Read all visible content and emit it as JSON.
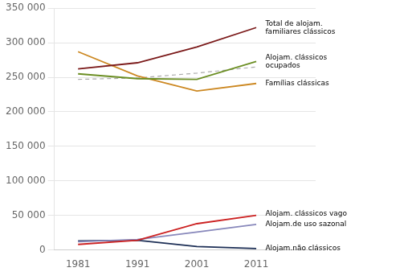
{
  "chart_data": {
    "type": "line",
    "x": [
      1981,
      1991,
      2001,
      2011
    ],
    "series": [
      {
        "color": "#7B1A1A",
        "values": [
          262000,
          271000,
          294000,
          322000
        ],
        "line_style": "solid"
      },
      {
        "color": "#6B8E23",
        "values": [
          255000,
          248000,
          247000,
          273000
        ],
        "line_style": "solid"
      },
      {
        "color": "#CC8822",
        "values": [
          287000,
          252000,
          230000,
          241000
        ],
        "line_style": "solid"
      },
      {
        "color": "#AAAAAA",
        "values": [
          247000,
          249000,
          256000,
          265000
        ],
        "line_style": "dashed"
      },
      {
        "color": "#CC2222",
        "values": [
          8000,
          14000,
          38000,
          50000
        ],
        "line_style": "solid"
      },
      {
        "color": "#8888BB",
        "values": [
          12000,
          15000,
          26000,
          37000
        ],
        "line_style": "solid"
      },
      {
        "color": "#1C2E55",
        "values": [
          13000,
          14000,
          5000,
          2000
        ],
        "line_style": "solid"
      }
    ],
    "xlim": [
      1977,
      2021
    ],
    "xticks": [
      1981,
      1991,
      2001,
      2011
    ],
    "ylim": [
      0,
      350000
    ],
    "yticks": [
      0,
      {
        "value": 50000,
        "label": "50 000"
      },
      {
        "value": 100000,
        "label": "100 000"
      },
      {
        "value": 150000,
        "label": "150 000"
      },
      {
        "value": 200000,
        "label": "200 000"
      },
      {
        "value": 250000,
        "label": "250 000"
      },
      {
        "value": 300000,
        "label": "300 000"
      },
      {
        "value": 350000,
        "label": "350 000"
      }
    ],
    "grid": "y",
    "annotations": [
      {
        "text": "Total de alojam.\nfamiliares clássicos",
        "x": 2012,
        "y": 322000
      },
      {
        "text": "Alojam. clássicos\nocupados",
        "x": 2012,
        "y": 272000
      },
      {
        "text": "Famílias clássicas",
        "x": 2012,
        "y": 241000
      },
      {
        "text": "Alojam. clássicos vago",
        "x": 2012,
        "y": 52000
      },
      {
        "text": "Alojam.de uso sazonal",
        "x": 2012,
        "y": 37000
      },
      {
        "text": "Alojam.não clássicos",
        "x": 2012,
        "y": 2000
      }
    ]
  }
}
